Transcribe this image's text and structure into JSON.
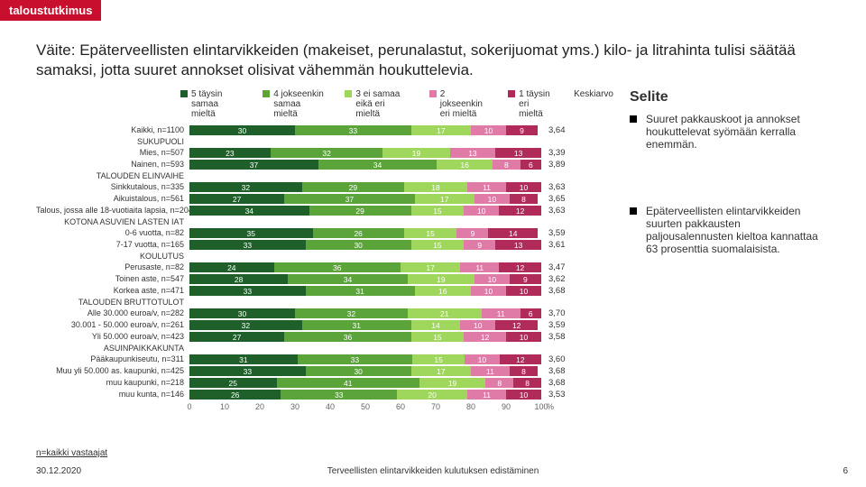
{
  "brand": "taloustutkimus",
  "title": "Väite: Epäterveellisten elintarvikkeiden (makeiset, perunalastut, sokerijuomat yms.) kilo- ja litrahinta tulisi säätää samaksi, jotta suuret annokset olisivat vähemmän houkuttelevia.",
  "legend": [
    {
      "label": "5 täysin\nsamaa mieltä",
      "color": "#1e5f2a"
    },
    {
      "label": "4 jokseenkin\nsamaa mieltä",
      "color": "#5aa43a"
    },
    {
      "label": "3 ei samaa\neikä eri mieltä",
      "color": "#9fd65c"
    },
    {
      "label": "2 jokseenkin\neri mieltä",
      "color": "#e07ba8"
    },
    {
      "label": "1 täysin\neri mieltä",
      "color": "#b02a5a"
    },
    {
      "label": "Keskiarvo",
      "color": null
    }
  ],
  "colors": [
    "#1e5f2a",
    "#5aa43a",
    "#9fd65c",
    "#e07ba8",
    "#b02a5a"
  ],
  "rows": [
    {
      "label": "Kaikki, n=1100",
      "v": [
        30,
        33,
        17,
        10,
        9
      ],
      "avg": "3,64",
      "gap": true
    },
    {
      "section": "SUKUPUOLI"
    },
    {
      "label": "Mies, n=507",
      "v": [
        23,
        32,
        19,
        13,
        13
      ],
      "avg": "3,39"
    },
    {
      "label": "Nainen, n=593",
      "v": [
        37,
        34,
        16,
        8,
        6
      ],
      "avg": "3,89"
    },
    {
      "section": "TALOUDEN ELINVAIHE"
    },
    {
      "label": "Sinkkutalous, n=335",
      "v": [
        32,
        29,
        18,
        11,
        10
      ],
      "avg": "3,63"
    },
    {
      "label": "Aikuistalous, n=561",
      "v": [
        27,
        37,
        17,
        10,
        8
      ],
      "avg": "3,65"
    },
    {
      "label": "Talous, jossa alle 18-vuotiaita lapsia, n=204",
      "v": [
        34,
        29,
        15,
        10,
        12
      ],
      "avg": "3,63"
    },
    {
      "section": "KOTONA ASUVIEN LASTEN IÄT"
    },
    {
      "label": "0-6 vuotta, n=82",
      "v": [
        35,
        26,
        15,
        9,
        14
      ],
      "avg": "3,59"
    },
    {
      "label": "7-17 vuotta, n=165",
      "v": [
        33,
        30,
        15,
        9,
        13
      ],
      "avg": "3,61"
    },
    {
      "section": "KOULUTUS"
    },
    {
      "label": "Perusaste, n=82",
      "v": [
        24,
        36,
        17,
        11,
        12
      ],
      "avg": "3,47"
    },
    {
      "label": "Toinen aste, n=547",
      "v": [
        28,
        34,
        19,
        10,
        9
      ],
      "avg": "3,62"
    },
    {
      "label": "Korkea aste, n=471",
      "v": [
        33,
        31,
        16,
        10,
        10
      ],
      "avg": "3,68"
    },
    {
      "section": "TALOUDEN BRUTTOTULOT"
    },
    {
      "label": "Alle 30.000 euroa/v, n=282",
      "v": [
        30,
        32,
        21,
        11,
        6
      ],
      "avg": "3,70"
    },
    {
      "label": "30.001 - 50.000 euroa/v, n=261",
      "v": [
        32,
        31,
        14,
        10,
        12
      ],
      "avg": "3,59"
    },
    {
      "label": "Yli 50.000 euroa/v, n=423",
      "v": [
        27,
        36,
        15,
        12,
        10
      ],
      "avg": "3,58"
    },
    {
      "section": "ASUINPAIKKAKUNTA"
    },
    {
      "label": "Pääkaupunkiseutu, n=311",
      "v": [
        31,
        33,
        15,
        10,
        12
      ],
      "avg": "3,60"
    },
    {
      "label": "Muu yli 50.000 as. kaupunki, n=425",
      "v": [
        33,
        30,
        17,
        11,
        8
      ],
      "avg": "3,68"
    },
    {
      "label": "muu kaupunki, n=218",
      "v": [
        25,
        41,
        19,
        8,
        8
      ],
      "avg": "3,68"
    },
    {
      "label": "muu kunta, n=146",
      "v": [
        26,
        33,
        20,
        11,
        10
      ],
      "avg": "3,53"
    }
  ],
  "axis": {
    "ticks": [
      0,
      10,
      20,
      30,
      40,
      50,
      60,
      70,
      80,
      90,
      100
    ],
    "unit": "%"
  },
  "selite": {
    "heading": "Selite",
    "bullets": [
      "Suuret pakkauskoot ja annokset houkuttelevat syömään kerralla enemmän.",
      "Epäterveellisten elintarvikkeiden suurten pakkausten paljousalennusten kieltoa kannattaa 63 prosenttia suomalaisista."
    ]
  },
  "footnote": "n=kaikki vastaajat",
  "date": "30.12.2020",
  "footer_center": "Terveellisten elintarvikkeiden kulutuksen edistäminen",
  "page": "6"
}
